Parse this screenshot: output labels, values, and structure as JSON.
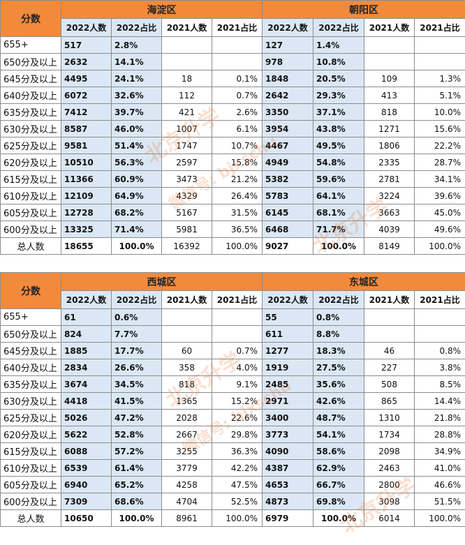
{
  "top": {
    "score_label": "分数",
    "district_a": "海淀区",
    "district_b": "朝阳区",
    "col_headers": [
      "2022人数",
      "2022占比",
      "2021人数",
      "2021占比"
    ],
    "rows": [
      {
        "label": "655+",
        "a": [
          "517",
          "2.8%",
          "",
          ""
        ],
        "b": [
          "127",
          "1.4%",
          "",
          ""
        ]
      },
      {
        "label": "650分及以上",
        "a": [
          "2632",
          "14.1%",
          "",
          ""
        ],
        "b": [
          "978",
          "10.8%",
          "",
          ""
        ]
      },
      {
        "label": "645分及以上",
        "a": [
          "4495",
          "24.1%",
          "18",
          "0.1%"
        ],
        "b": [
          "1848",
          "20.5%",
          "109",
          "1.3%"
        ]
      },
      {
        "label": "640分及以上",
        "a": [
          "6072",
          "32.6%",
          "112",
          "0.7%"
        ],
        "b": [
          "2642",
          "29.3%",
          "413",
          "5.1%"
        ]
      },
      {
        "label": "635分及以上",
        "a": [
          "7412",
          "39.7%",
          "421",
          "2.6%"
        ],
        "b": [
          "3350",
          "37.1%",
          "818",
          "10.0%"
        ]
      },
      {
        "label": "630分及以上",
        "a": [
          "8587",
          "46.0%",
          "1007",
          "6.1%"
        ],
        "b": [
          "3954",
          "43.8%",
          "1271",
          "15.6%"
        ]
      },
      {
        "label": "625分及以上",
        "a": [
          "9581",
          "51.4%",
          "1747",
          "10.7%"
        ],
        "b": [
          "4467",
          "49.5%",
          "1806",
          "22.2%"
        ]
      },
      {
        "label": "620分及以上",
        "a": [
          "10510",
          "56.3%",
          "2597",
          "15.8%"
        ],
        "b": [
          "4949",
          "54.8%",
          "2335",
          "28.7%"
        ]
      },
      {
        "label": "615分及以上",
        "a": [
          "11366",
          "60.9%",
          "3473",
          "21.2%"
        ],
        "b": [
          "5382",
          "59.6%",
          "2781",
          "34.1%"
        ]
      },
      {
        "label": "610分及以上",
        "a": [
          "12109",
          "64.9%",
          "4329",
          "26.4%"
        ],
        "b": [
          "5783",
          "64.1%",
          "3224",
          "39.6%"
        ]
      },
      {
        "label": "605分及以上",
        "a": [
          "12728",
          "68.2%",
          "5167",
          "31.5%"
        ],
        "b": [
          "6145",
          "68.1%",
          "3663",
          "45.0%"
        ]
      },
      {
        "label": "600分及以上",
        "a": [
          "13325",
          "71.4%",
          "5981",
          "36.5%"
        ],
        "b": [
          "6468",
          "71.7%",
          "4039",
          "49.6%"
        ]
      }
    ],
    "total": {
      "label": "总人数",
      "a": [
        "18655",
        "100.0%",
        "16392",
        "100.0%"
      ],
      "b": [
        "9027",
        "100.0%",
        "8149",
        "100.0%"
      ]
    }
  },
  "bottom": {
    "score_label": "分数",
    "district_a": "西城区",
    "district_b": "东城区",
    "col_headers": [
      "2022人数",
      "2022占比",
      "2021人数",
      "2021占比"
    ],
    "rows": [
      {
        "label": "655+",
        "a": [
          "61",
          "0.6%",
          "",
          ""
        ],
        "b": [
          "55",
          "0.8%",
          "",
          ""
        ]
      },
      {
        "label": "650分及以上",
        "a": [
          "824",
          "7.7%",
          "",
          ""
        ],
        "b": [
          "611",
          "8.8%",
          "",
          ""
        ]
      },
      {
        "label": "645分及以上",
        "a": [
          "1885",
          "17.7%",
          "60",
          "0.7%"
        ],
        "b": [
          "1277",
          "18.3%",
          "46",
          "0.8%"
        ]
      },
      {
        "label": "640分及以上",
        "a": [
          "2834",
          "26.6%",
          "358",
          "4.0%"
        ],
        "b": [
          "1919",
          "27.5%",
          "227",
          "3.8%"
        ]
      },
      {
        "label": "635分及以上",
        "a": [
          "3674",
          "34.5%",
          "818",
          "9.1%"
        ],
        "b": [
          "2485",
          "35.6%",
          "508",
          "8.5%"
        ]
      },
      {
        "label": "630分及以上",
        "a": [
          "4418",
          "41.5%",
          "1365",
          "15.2%"
        ],
        "b": [
          "2971",
          "42.6%",
          "865",
          "14.4%"
        ]
      },
      {
        "label": "625分及以上",
        "a": [
          "5026",
          "47.2%",
          "2028",
          "22.6%"
        ],
        "b": [
          "3400",
          "48.7%",
          "1310",
          "21.8%"
        ]
      },
      {
        "label": "620分及以上",
        "a": [
          "5622",
          "52.8%",
          "2667",
          "29.8%"
        ],
        "b": [
          "3773",
          "54.1%",
          "1734",
          "28.8%"
        ]
      },
      {
        "label": "615分及以上",
        "a": [
          "6088",
          "57.2%",
          "3255",
          "36.3%"
        ],
        "b": [
          "4090",
          "58.6%",
          "2098",
          "34.9%"
        ]
      },
      {
        "label": "610分及以上",
        "a": [
          "6539",
          "61.4%",
          "3779",
          "42.2%"
        ],
        "b": [
          "4387",
          "62.9%",
          "2463",
          "41.0%"
        ]
      },
      {
        "label": "605分及以上",
        "a": [
          "6940",
          "65.2%",
          "4258",
          "47.5%"
        ],
        "b": [
          "4653",
          "66.7%",
          "2800",
          "46.6%"
        ]
      },
      {
        "label": "600分及以上",
        "a": [
          "7309",
          "68.6%",
          "4704",
          "52.5%"
        ],
        "b": [
          "4873",
          "69.8%",
          "3098",
          "51.5%"
        ]
      }
    ],
    "total": {
      "label": "总人数",
      "a": [
        "10650",
        "100.0%",
        "8961",
        "100.0%"
      ],
      "b": [
        "6979",
        "100.0%",
        "6014",
        "100.0%"
      ]
    }
  },
  "watermark": {
    "text_a": "北京升学",
    "text_b": "微信号: bjxschu"
  }
}
